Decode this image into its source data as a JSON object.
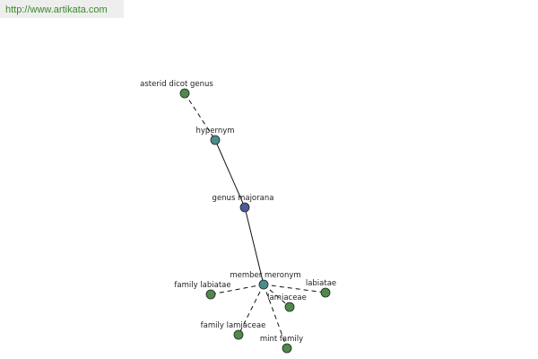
{
  "header": {
    "url": "http://www.artikata.com"
  },
  "nodes": [
    {
      "label": "asterid dicot genus"
    },
    {
      "label": "hypernym"
    },
    {
      "label": "genus majorana"
    },
    {
      "label": "member meronym"
    },
    {
      "label": "family labiatae"
    },
    {
      "label": "labiatae"
    },
    {
      "label": "lamiaceae"
    },
    {
      "label": "family lamiaceae"
    },
    {
      "label": "mint family"
    }
  ]
}
